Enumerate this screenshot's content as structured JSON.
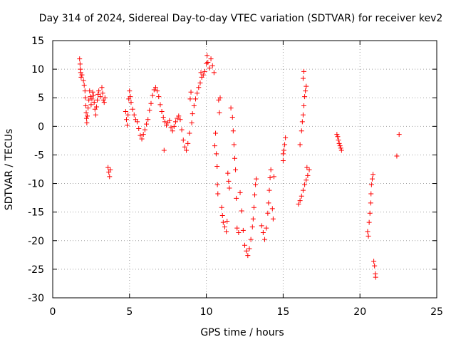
{
  "chart_data": {
    "type": "scatter",
    "title": "Day 314 of 2024, Sidereal Day-to-day VTEC variation (SDTVAR) for receiver kev2",
    "xlabel": "GPS time / hours",
    "ylabel": "SDTVAR / TECUs",
    "xlim": [
      0,
      25
    ],
    "ylim": [
      -30,
      15
    ],
    "xticks": [
      0,
      5,
      10,
      15,
      20,
      25
    ],
    "yticks": [
      -30,
      -25,
      -20,
      -15,
      -10,
      -5,
      0,
      5,
      10,
      15
    ],
    "grid": true,
    "marker": "plus",
    "color": "#ff0000",
    "series": [
      {
        "name": "SDTVAR",
        "points": [
          [
            1.75,
            11.8
          ],
          [
            1.78,
            10.9
          ],
          [
            1.8,
            10.0
          ],
          [
            1.82,
            9.4
          ],
          [
            1.85,
            8.6
          ],
          [
            1.9,
            9.0
          ],
          [
            2.0,
            8.0
          ],
          [
            2.05,
            7.2
          ],
          [
            2.1,
            6.2
          ],
          [
            2.12,
            5.0
          ],
          [
            2.15,
            3.6
          ],
          [
            2.18,
            2.4
          ],
          [
            2.2,
            1.4
          ],
          [
            2.22,
            0.6
          ],
          [
            2.25,
            1.8
          ],
          [
            2.3,
            3.2
          ],
          [
            2.35,
            4.6
          ],
          [
            2.4,
            6.2
          ],
          [
            2.45,
            5.2
          ],
          [
            2.5,
            3.8
          ],
          [
            2.55,
            4.8
          ],
          [
            2.6,
            6.0
          ],
          [
            2.65,
            5.4
          ],
          [
            2.7,
            4.2
          ],
          [
            2.75,
            3.0
          ],
          [
            2.8,
            2.0
          ],
          [
            2.85,
            3.4
          ],
          [
            2.9,
            4.6
          ],
          [
            2.95,
            5.6
          ],
          [
            3.0,
            6.2
          ],
          [
            3.1,
            5.2
          ],
          [
            3.2,
            6.8
          ],
          [
            3.25,
            5.8
          ],
          [
            3.3,
            4.6
          ],
          [
            3.35,
            4.2
          ],
          [
            3.4,
            5.0
          ],
          [
            3.6,
            -7.2
          ],
          [
            3.65,
            -8.0
          ],
          [
            3.7,
            -8.8
          ],
          [
            3.75,
            -7.6
          ],
          [
            4.75,
            2.6
          ],
          [
            4.8,
            1.2
          ],
          [
            4.85,
            0.2
          ],
          [
            4.9,
            2.0
          ],
          [
            4.95,
            4.8
          ],
          [
            5.0,
            6.2
          ],
          [
            5.05,
            5.2
          ],
          [
            5.1,
            4.2
          ],
          [
            5.2,
            3.0
          ],
          [
            5.3,
            2.0
          ],
          [
            5.4,
            1.2
          ],
          [
            5.5,
            0.8
          ],
          [
            5.6,
            -0.4
          ],
          [
            5.7,
            -1.6
          ],
          [
            5.8,
            -2.2
          ],
          [
            5.9,
            -1.4
          ],
          [
            6.0,
            -0.6
          ],
          [
            6.1,
            0.4
          ],
          [
            6.2,
            1.2
          ],
          [
            6.3,
            2.8
          ],
          [
            6.4,
            4.0
          ],
          [
            6.5,
            5.4
          ],
          [
            6.6,
            6.4
          ],
          [
            6.7,
            6.8
          ],
          [
            6.8,
            6.2
          ],
          [
            6.9,
            5.2
          ],
          [
            7.0,
            3.8
          ],
          [
            7.1,
            2.6
          ],
          [
            7.2,
            1.6
          ],
          [
            7.25,
            -4.2
          ],
          [
            7.3,
            0.8
          ],
          [
            7.4,
            0.2
          ],
          [
            7.5,
            0.6
          ],
          [
            7.6,
            1.0
          ],
          [
            7.7,
            -0.2
          ],
          [
            7.8,
            -0.8
          ],
          [
            7.9,
            0.0
          ],
          [
            8.0,
            0.8
          ],
          [
            8.1,
            1.4
          ],
          [
            8.2,
            1.8
          ],
          [
            8.3,
            1.2
          ],
          [
            8.4,
            -0.6
          ],
          [
            8.5,
            -2.4
          ],
          [
            8.6,
            -3.6
          ],
          [
            8.7,
            -4.2
          ],
          [
            8.8,
            -3.0
          ],
          [
            8.9,
            -1.2
          ],
          [
            8.95,
            4.8
          ],
          [
            9.0,
            6.0
          ],
          [
            9.05,
            0.6
          ],
          [
            9.1,
            2.2
          ],
          [
            9.2,
            3.6
          ],
          [
            9.3,
            4.8
          ],
          [
            9.4,
            5.8
          ],
          [
            9.5,
            6.8
          ],
          [
            9.6,
            7.6
          ],
          [
            9.65,
            9.4
          ],
          [
            9.7,
            8.6
          ],
          [
            9.8,
            9.0
          ],
          [
            9.9,
            9.6
          ],
          [
            10.0,
            11.0
          ],
          [
            10.05,
            12.4
          ],
          [
            10.1,
            11.2
          ],
          [
            10.2,
            10.2
          ],
          [
            10.3,
            11.8
          ],
          [
            10.4,
            10.6
          ],
          [
            10.5,
            9.4
          ],
          [
            10.55,
            -3.4
          ],
          [
            10.6,
            -1.2
          ],
          [
            10.65,
            -4.8
          ],
          [
            10.7,
            -7.0
          ],
          [
            10.72,
            -10.2
          ],
          [
            10.75,
            -11.8
          ],
          [
            10.8,
            4.6
          ],
          [
            10.85,
            2.4
          ],
          [
            10.9,
            5.0
          ],
          [
            11.0,
            -14.2
          ],
          [
            11.05,
            -15.6
          ],
          [
            11.1,
            -16.8
          ],
          [
            11.2,
            -17.6
          ],
          [
            11.3,
            -18.4
          ],
          [
            11.35,
            -16.6
          ],
          [
            11.4,
            -8.2
          ],
          [
            11.45,
            -9.6
          ],
          [
            11.5,
            -10.8
          ],
          [
            11.6,
            3.2
          ],
          [
            11.7,
            1.6
          ],
          [
            11.75,
            -0.8
          ],
          [
            11.8,
            -3.2
          ],
          [
            11.85,
            -5.6
          ],
          [
            11.9,
            -7.6
          ],
          [
            11.95,
            -12.6
          ],
          [
            12.0,
            -17.8
          ],
          [
            12.1,
            -18.6
          ],
          [
            12.2,
            -11.6
          ],
          [
            12.3,
            -14.8
          ],
          [
            12.4,
            -18.2
          ],
          [
            12.5,
            -20.8
          ],
          [
            12.6,
            -21.8
          ],
          [
            12.7,
            -22.6
          ],
          [
            12.8,
            -21.4
          ],
          [
            12.9,
            -19.8
          ],
          [
            13.0,
            -17.6
          ],
          [
            13.05,
            -16.2
          ],
          [
            13.1,
            -14.2
          ],
          [
            13.15,
            -12.0
          ],
          [
            13.2,
            -10.2
          ],
          [
            13.25,
            -9.2
          ],
          [
            13.6,
            -17.4
          ],
          [
            13.7,
            -18.6
          ],
          [
            13.8,
            -19.8
          ],
          [
            13.9,
            -17.8
          ],
          [
            14.0,
            -15.2
          ],
          [
            14.05,
            -13.4
          ],
          [
            14.1,
            -11.2
          ],
          [
            14.15,
            -9.0
          ],
          [
            14.2,
            -7.6
          ],
          [
            14.3,
            -14.4
          ],
          [
            14.35,
            -16.2
          ],
          [
            14.4,
            -8.8
          ],
          [
            15.0,
            -4.8
          ],
          [
            15.05,
            -4.2
          ],
          [
            15.1,
            -3.2
          ],
          [
            15.15,
            -2.0
          ],
          [
            15.0,
            -6.0
          ],
          [
            16.0,
            -13.6
          ],
          [
            16.1,
            -13.0
          ],
          [
            16.2,
            -12.2
          ],
          [
            16.3,
            -11.2
          ],
          [
            16.4,
            -10.2
          ],
          [
            16.5,
            -9.4
          ],
          [
            16.55,
            -7.2
          ],
          [
            16.6,
            -8.6
          ],
          [
            16.7,
            -7.6
          ],
          [
            16.1,
            -3.2
          ],
          [
            16.2,
            -0.8
          ],
          [
            16.25,
            0.8
          ],
          [
            16.3,
            2.0
          ],
          [
            16.35,
            3.6
          ],
          [
            16.4,
            5.2
          ],
          [
            16.45,
            6.2
          ],
          [
            16.5,
            7.0
          ],
          [
            16.3,
            8.4
          ],
          [
            16.35,
            9.6
          ],
          [
            18.5,
            -1.4
          ],
          [
            18.55,
            -1.8
          ],
          [
            18.6,
            -2.4
          ],
          [
            18.65,
            -3.0
          ],
          [
            18.7,
            -3.4
          ],
          [
            18.75,
            -3.8
          ],
          [
            18.8,
            -4.2
          ],
          [
            20.5,
            -18.4
          ],
          [
            20.55,
            -19.2
          ],
          [
            20.6,
            -16.8
          ],
          [
            20.65,
            -15.2
          ],
          [
            20.7,
            -13.4
          ],
          [
            20.72,
            -11.8
          ],
          [
            20.75,
            -10.2
          ],
          [
            20.8,
            -9.2
          ],
          [
            20.85,
            -8.4
          ],
          [
            20.9,
            -23.6
          ],
          [
            20.95,
            -24.4
          ],
          [
            21.0,
            -25.8
          ],
          [
            21.02,
            -26.4
          ],
          [
            22.4,
            -5.2
          ],
          [
            22.55,
            -1.4
          ]
        ]
      }
    ]
  }
}
